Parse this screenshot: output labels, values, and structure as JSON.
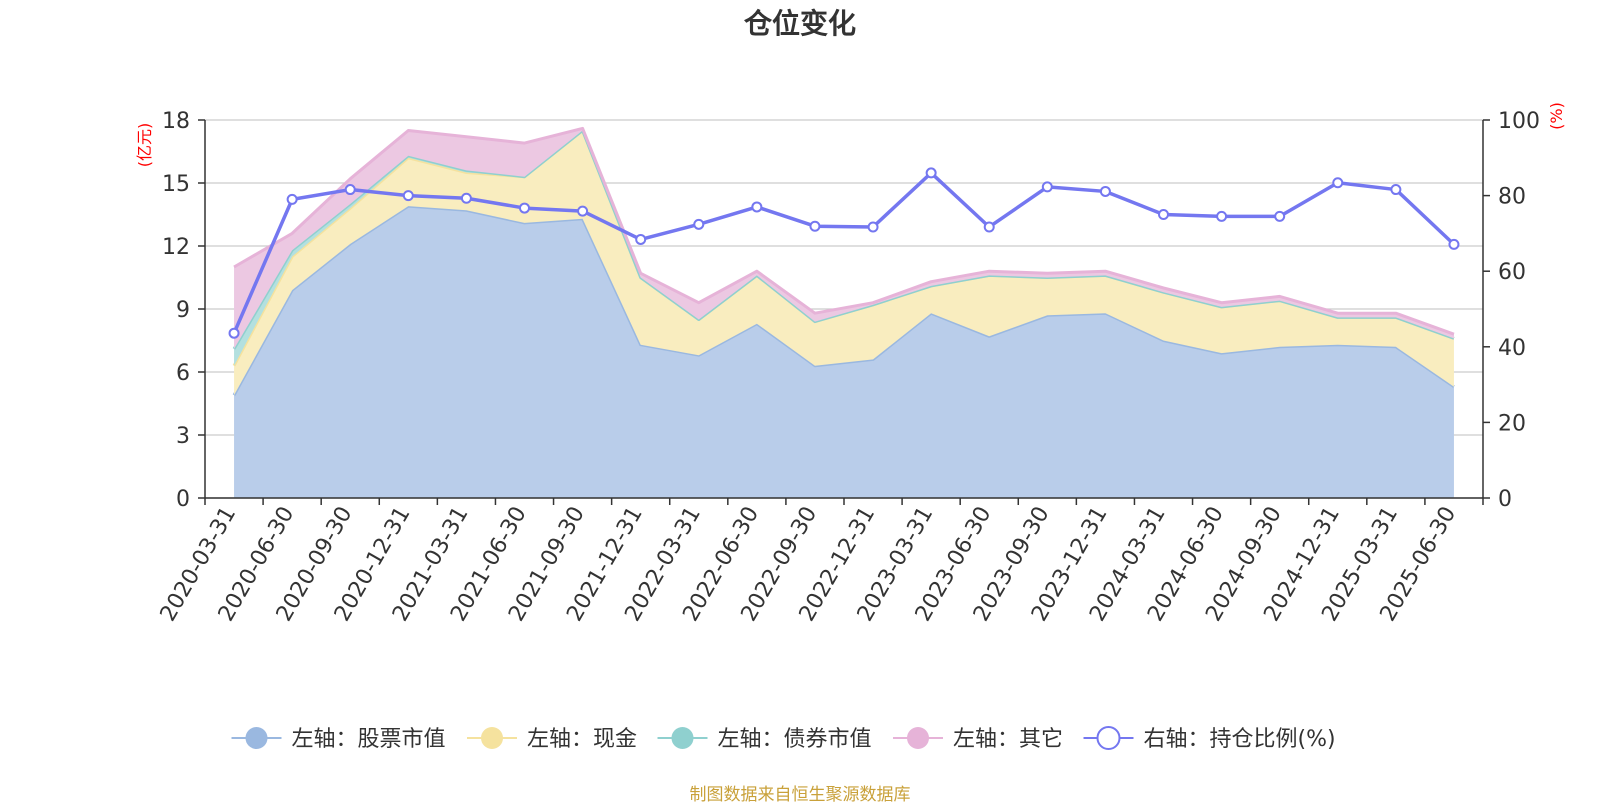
{
  "chart_data": {
    "type": "area",
    "title": "仓位变化",
    "y_left_unit": "(亿元)",
    "y_right_unit": "(%)",
    "y_left_range": [
      0,
      18
    ],
    "y_left_ticks": [
      "0",
      "3",
      "6",
      "9",
      "12",
      "15",
      "18"
    ],
    "y_right_range": [
      0,
      100
    ],
    "y_right_ticks": [
      "0",
      "20",
      "40",
      "60",
      "80",
      "100"
    ],
    "grid": true,
    "legend_position": "bottom",
    "categories": [
      "2020-03-31",
      "2020-06-30",
      "2020-09-30",
      "2020-12-31",
      "2021-03-31",
      "2021-06-30",
      "2021-09-30",
      "2021-12-31",
      "2022-03-31",
      "2022-06-30",
      "2022-09-30",
      "2022-12-31",
      "2023-03-31",
      "2023-06-30",
      "2023-09-30",
      "2023-12-31",
      "2024-03-31",
      "2024-06-30",
      "2024-09-30",
      "2024-12-31",
      "2025-03-31",
      "2025-06-30"
    ],
    "series": [
      {
        "name": "左轴：股票市值",
        "axis": "left",
        "kind": "stacked-area",
        "color": "#9ab8e0",
        "fill": "#b9cdea",
        "values": [
          4.9,
          9.9,
          12.1,
          13.9,
          13.7,
          13.1,
          13.3,
          7.3,
          6.8,
          8.3,
          6.3,
          6.6,
          8.8,
          7.7,
          8.7,
          8.8,
          7.5,
          6.9,
          7.2,
          7.3,
          7.2,
          5.3
        ]
      },
      {
        "name": "左轴：现金",
        "axis": "left",
        "kind": "stacked-area",
        "color": "#f5e29e",
        "fill": "#f9edbf",
        "values": [
          1.4,
          1.6,
          1.7,
          2.3,
          1.8,
          2.2,
          4.2,
          3.2,
          1.7,
          2.3,
          2.1,
          2.6,
          1.3,
          2.9,
          1.8,
          1.8,
          2.3,
          2.2,
          2.2,
          1.3,
          1.4,
          2.3
        ]
      },
      {
        "name": "左轴：债券市值",
        "axis": "left",
        "kind": "stacked-area",
        "color": "#8fd0cf",
        "fill": "#b3e0df",
        "values": [
          0.8,
          0.3,
          0.2,
          0.1,
          0.1,
          0.0,
          0.0,
          0.0,
          0.0,
          0.0,
          0.0,
          0.0,
          0.0,
          0.0,
          0.0,
          0.0,
          0.0,
          0.0,
          0.0,
          0.0,
          0.0,
          0.0
        ]
      },
      {
        "name": "左轴：其它",
        "axis": "left",
        "kind": "stacked-area",
        "color": "#e6b3d8",
        "fill": "#ecc8e2",
        "values": [
          3.9,
          0.8,
          1.2,
          1.2,
          1.6,
          1.6,
          0.1,
          0.2,
          0.8,
          0.2,
          0.4,
          0.1,
          0.2,
          0.2,
          0.2,
          0.2,
          0.2,
          0.2,
          0.2,
          0.2,
          0.2,
          0.2
        ]
      },
      {
        "name": "右轴：持仓比例(%)",
        "axis": "right",
        "kind": "line",
        "color": "#7477f0",
        "values": [
          43.6,
          79.0,
          81.6,
          80.0,
          79.3,
          76.7,
          75.9,
          68.4,
          72.4,
          77.0,
          71.9,
          71.7,
          86.0,
          71.7,
          82.3,
          81.1,
          75.0,
          74.5,
          74.5,
          83.4,
          81.6,
          67.1
        ]
      }
    ]
  },
  "footer": {
    "source": "制图数据来自恒生聚源数据库"
  },
  "colors": {
    "axis_unit": "#ff0000",
    "title": "#333333",
    "text": "#333333",
    "grid": "#cccccc",
    "source": "#c9a13a"
  }
}
